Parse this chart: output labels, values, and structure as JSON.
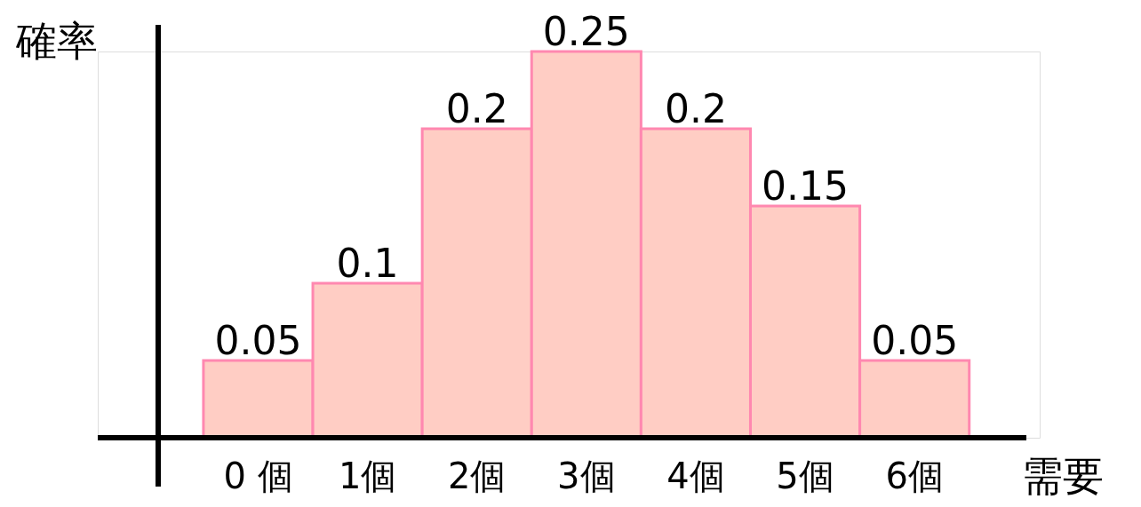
{
  "chart_data": {
    "type": "bar",
    "xlabel": "需要",
    "ylabel": "確率",
    "categories": [
      "0 個",
      "1個",
      "2個",
      "3個",
      "4個",
      "5個",
      "6個"
    ],
    "values": [
      0.05,
      0.1,
      0.2,
      0.25,
      0.2,
      0.15,
      0.05
    ],
    "color": "#ffcdc4",
    "data_labels": true
  }
}
